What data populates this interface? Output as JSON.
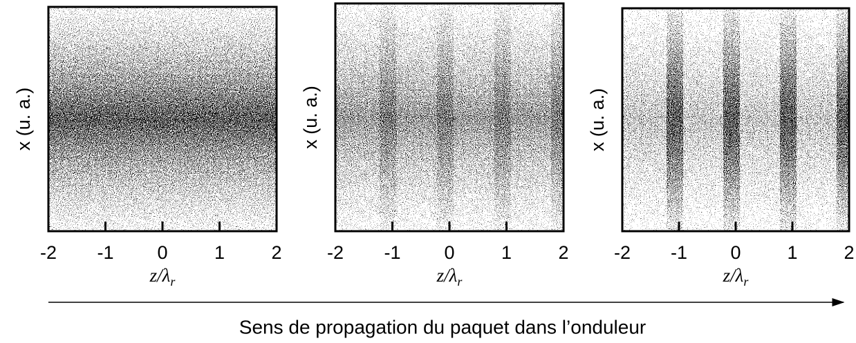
{
  "chart_data": [
    {
      "type": "scatter",
      "ylabel": "x (u. a.)",
      "xlabel": "z/λ",
      "xlabel_sub": "r",
      "xlim": [
        -2,
        2
      ],
      "xticks": [
        -2,
        -1,
        0,
        1,
        2
      ]
    },
    {
      "type": "scatter",
      "ylabel": "x (u. a.)",
      "xlabel": "z/λ",
      "xlabel_sub": "r",
      "xlim": [
        -2,
        2
      ],
      "xticks": [
        -2,
        -1,
        0,
        1,
        2
      ]
    },
    {
      "type": "scatter",
      "ylabel": "x (u. a.)",
      "xlabel": "z/λ",
      "xlabel_sub": "r",
      "xlim": [
        -2,
        2
      ],
      "xticks": [
        -2,
        -1,
        0,
        1,
        2
      ]
    }
  ],
  "caption": "Sens de propagation du paquet dans l’onduleur"
}
